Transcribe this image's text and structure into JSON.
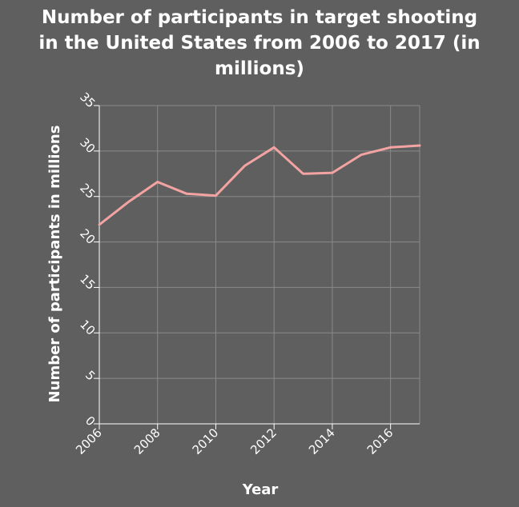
{
  "chart_data": {
    "type": "line",
    "title_lines": [
      "Number of participants in target shooting",
      "in the United States from 2006 to 2017 (in",
      "millions)"
    ],
    "xlabel": "Year",
    "ylabel": "Number of participants in millions",
    "x": [
      2006,
      2007,
      2008,
      2009,
      2010,
      2011,
      2012,
      2013,
      2014,
      2015,
      2016,
      2017
    ],
    "series": [
      {
        "values": [
          21.9,
          24.4,
          26.6,
          25.3,
          25.1,
          28.4,
          30.4,
          27.5,
          27.6,
          29.6,
          30.4,
          30.6
        ]
      }
    ],
    "xticks": [
      2006,
      2008,
      2010,
      2012,
      2014,
      2016
    ],
    "xtick_labels": [
      "2006",
      "2008",
      "2010",
      "2012",
      "2014",
      "2016"
    ],
    "yticks": [
      0,
      5,
      10,
      15,
      20,
      25,
      30,
      35
    ],
    "ytick_labels": [
      "0",
      "5",
      "10",
      "15",
      "20",
      "25",
      "30",
      "35"
    ],
    "xlim": [
      2006,
      2017
    ],
    "ylim": [
      0,
      35
    ],
    "grid": true,
    "colors": {
      "background": "#5f5f5f",
      "line": "#f4a3a3",
      "grid": "#8a8a8a",
      "text": "#ffffff"
    }
  }
}
